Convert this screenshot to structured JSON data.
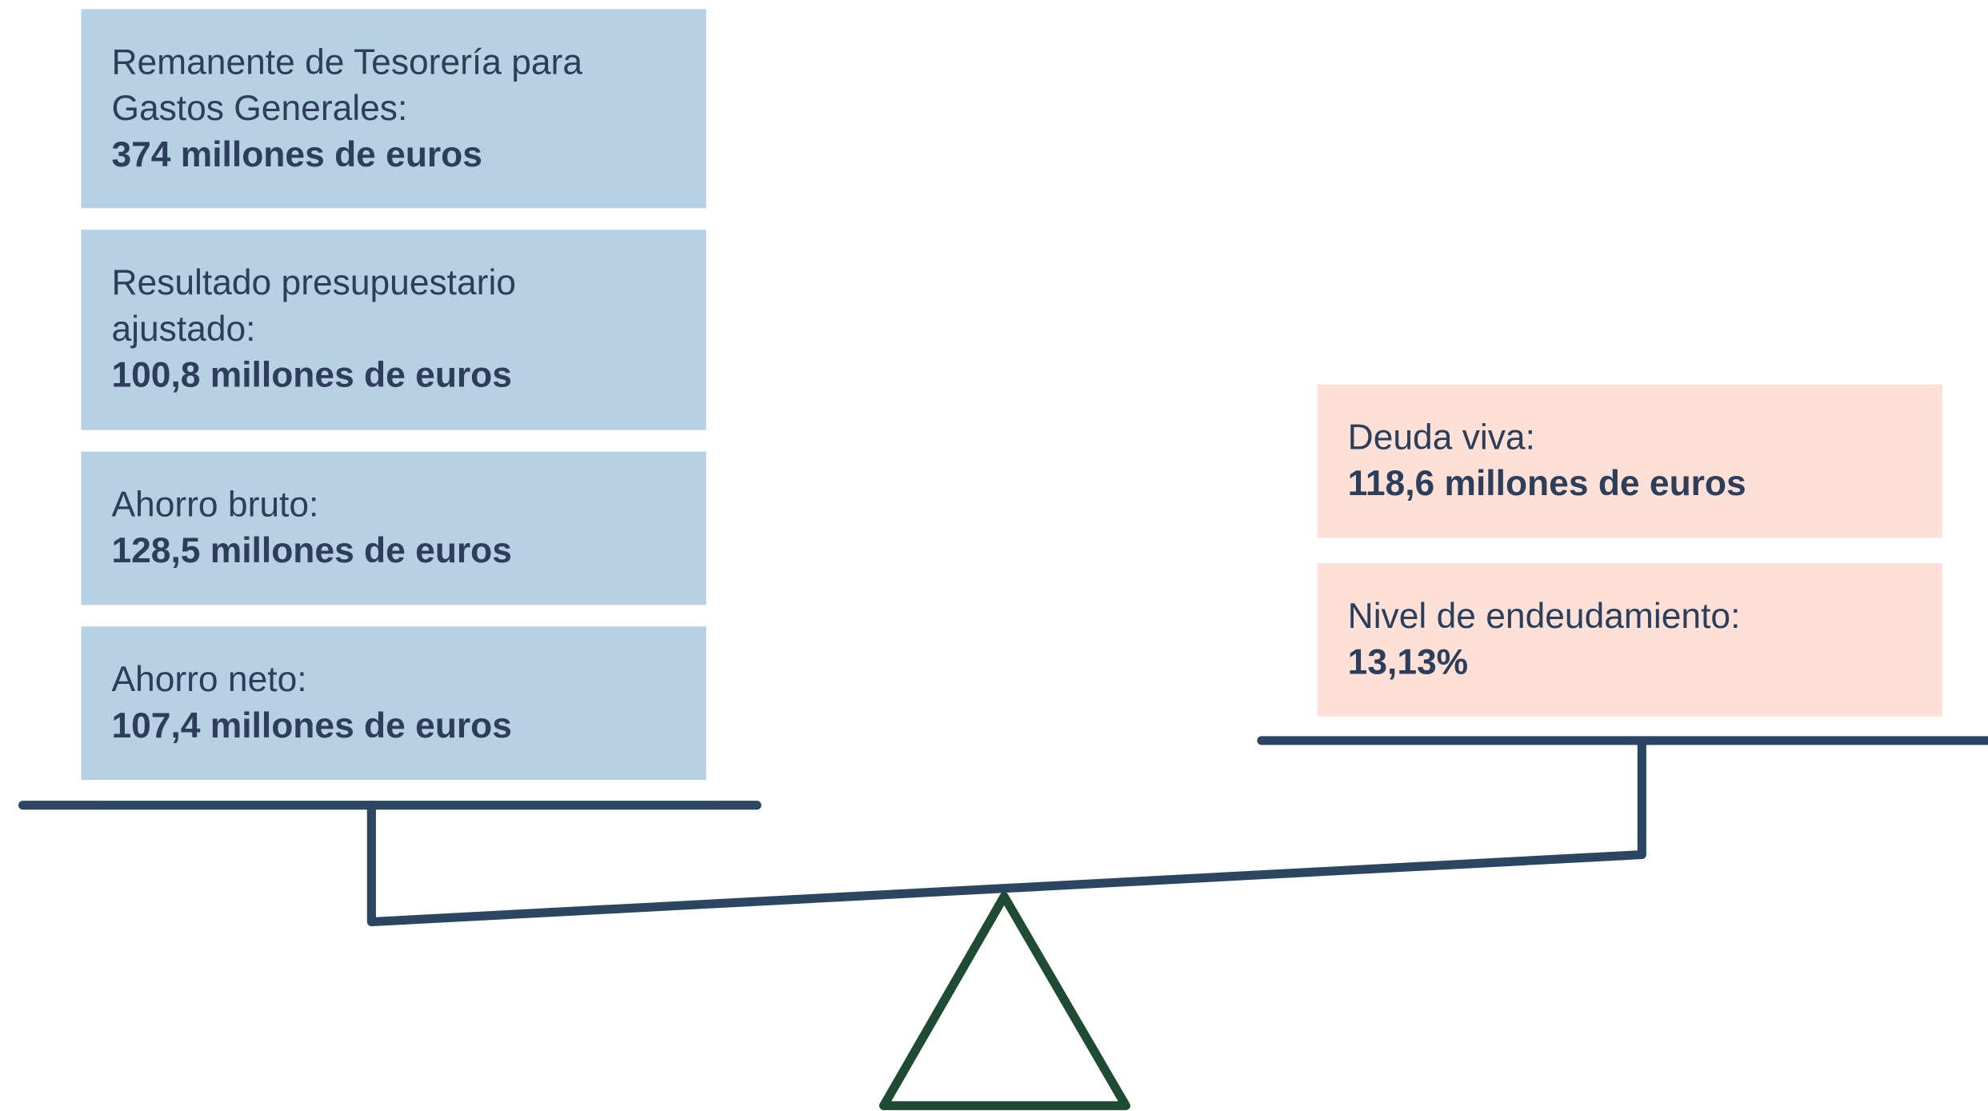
{
  "left_boxes": [
    {
      "label": [
        "Remanente de Tesorería para",
        "Gastos Generales:"
      ],
      "value": "374 millones de euros"
    },
    {
      "label": [
        "Resultado presupuestario",
        "ajustado:"
      ],
      "value": "100,8 millones de euros"
    },
    {
      "label": [
        "Ahorro bruto:"
      ],
      "value": "128,5 millones de euros"
    },
    {
      "label": [
        "Ahorro neto:"
      ],
      "value": "107,4 millones de euros"
    }
  ],
  "right_boxes": [
    {
      "label": [
        "Deuda viva:"
      ],
      "value": "118,6 millones de euros"
    },
    {
      "label": [
        "Nivel de endeudamiento:"
      ],
      "value": "13,13%"
    }
  ]
}
